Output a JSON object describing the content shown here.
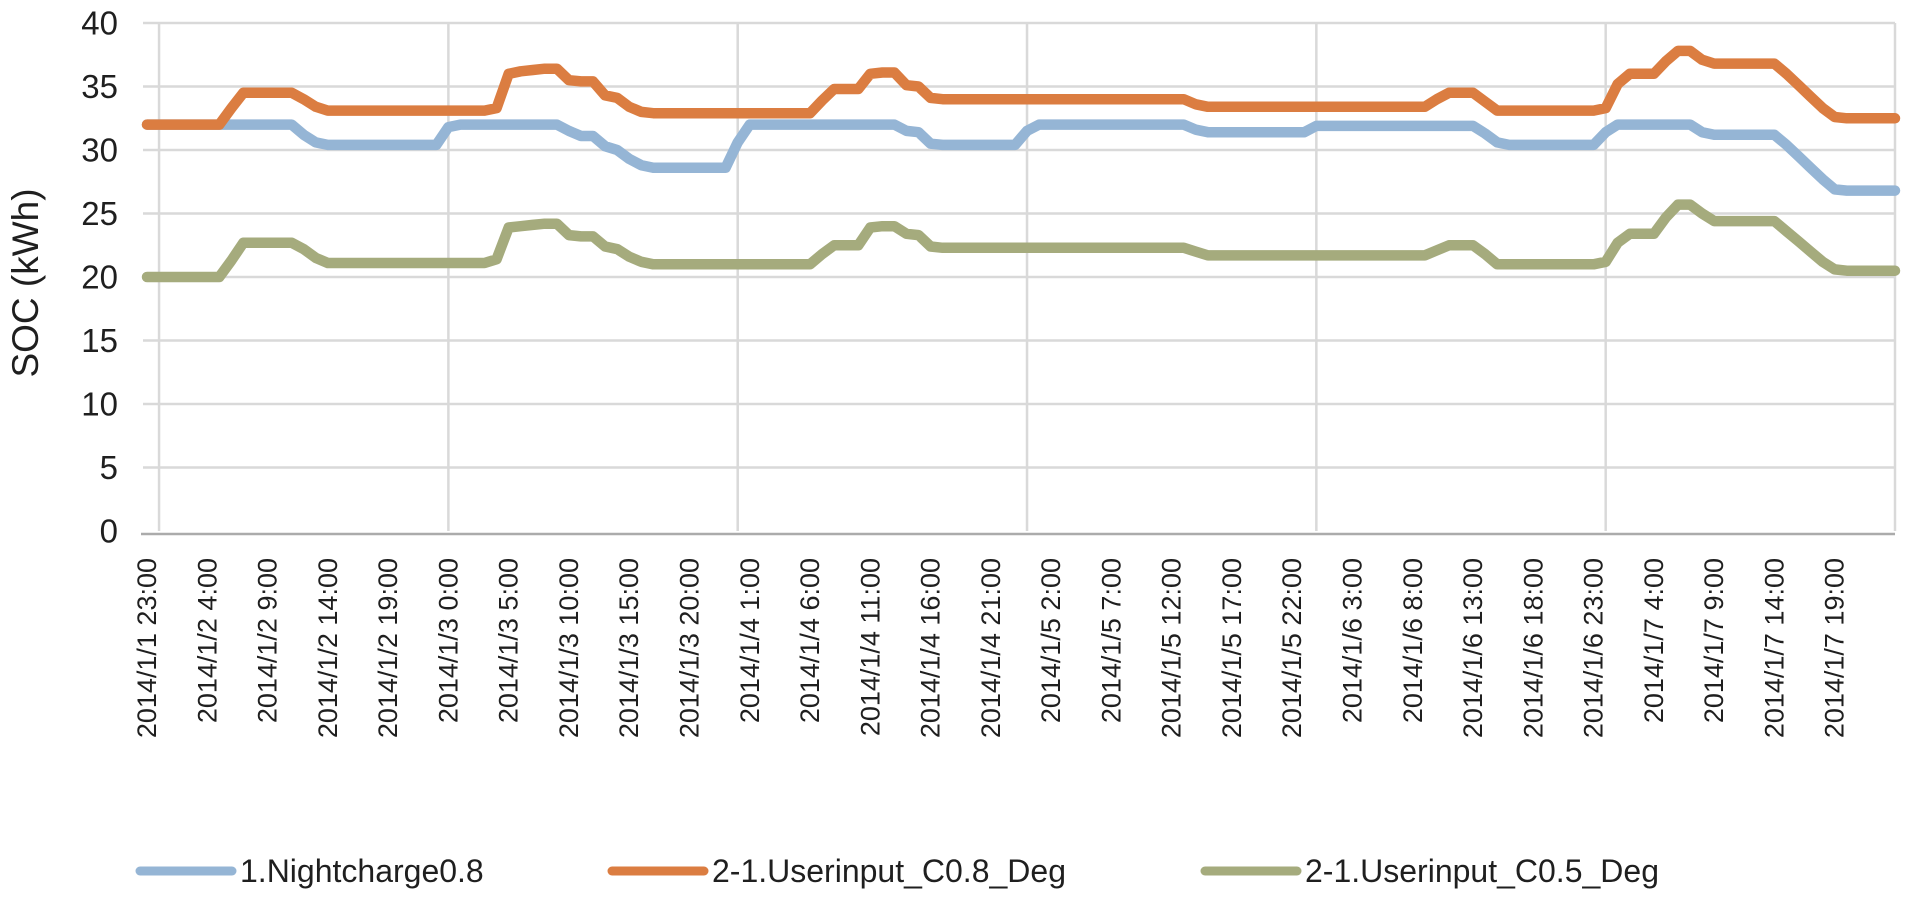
{
  "chart_data": {
    "type": "line",
    "title": "",
    "xlabel": "",
    "ylabel": "SOC (kWh)",
    "ylim": [
      0,
      40
    ],
    "ytick_step": 5,
    "ytick_labels": [
      "0",
      "5",
      "10",
      "15",
      "20",
      "25",
      "30",
      "35",
      "40"
    ],
    "x_start": "2014/1/1 23:00",
    "x_end": "2014/1/8 0:00",
    "x_interval_hours": 1,
    "x_tick_every": 5,
    "x_tick_labels": [
      "2014/1/1 23:00",
      "2014/1/2 4:00",
      "2014/1/2 9:00",
      "2014/1/2 14:00",
      "2014/1/2 19:00",
      "2014/1/3 0:00",
      "2014/1/3 5:00",
      "2014/1/3 10:00",
      "2014/1/3 15:00",
      "2014/1/3 20:00",
      "2014/1/4 1:00",
      "2014/1/4 6:00",
      "2014/1/4 11:00",
      "2014/1/4 16:00",
      "2014/1/4 21:00",
      "2014/1/5 2:00",
      "2014/1/5 7:00",
      "2014/1/5 12:00",
      "2014/1/5 17:00",
      "2014/1/5 22:00",
      "2014/1/6 3:00",
      "2014/1/6 8:00",
      "2014/1/6 13:00",
      "2014/1/6 18:00",
      "2014/1/6 23:00",
      "2014/1/7 4:00",
      "2014/1/7 9:00",
      "2014/1/7 14:00",
      "2014/1/7 19:00"
    ],
    "day_boundary_indices": [
      1,
      25,
      49,
      73,
      97,
      121,
      145
    ],
    "grid": true,
    "legend_position": "bottom",
    "series": [
      {
        "name": "1.Nightcharge0.8",
        "color": "#95B5D5",
        "values": [
          32,
          32,
          32,
          32,
          32,
          32,
          32,
          32,
          32,
          32,
          32,
          32,
          32,
          31.2,
          30.6,
          30.4,
          30.4,
          30.4,
          30.4,
          30.4,
          30.4,
          30.4,
          30.4,
          30.4,
          30.4,
          31.8,
          32,
          32,
          32,
          32,
          32,
          32,
          32,
          32,
          32,
          31.5,
          31.1,
          31.1,
          30.3,
          30,
          29.3,
          28.8,
          28.6,
          28.6,
          28.6,
          28.6,
          28.6,
          28.6,
          28.6,
          30.6,
          32,
          32,
          32,
          32,
          32,
          32,
          32,
          32,
          32,
          32,
          32,
          32,
          32,
          31.5,
          31.4,
          30.5,
          30.4,
          30.4,
          30.4,
          30.4,
          30.4,
          30.4,
          30.4,
          31.5,
          32,
          32,
          32,
          32,
          32,
          32,
          32,
          32,
          32,
          32,
          32,
          32,
          32,
          31.6,
          31.4,
          31.4,
          31.4,
          31.4,
          31.4,
          31.4,
          31.4,
          31.4,
          31.4,
          31.9,
          31.9,
          31.9,
          31.9,
          31.9,
          31.9,
          31.9,
          31.9,
          31.9,
          31.9,
          31.9,
          31.9,
          31.9,
          31.9,
          31.3,
          30.6,
          30.4,
          30.4,
          30.4,
          30.4,
          30.4,
          30.4,
          30.4,
          30.4,
          31.4,
          32,
          32,
          32,
          32,
          32,
          32,
          32,
          31.4,
          31.2,
          31.2,
          31.2,
          31.2,
          31.2,
          31.2,
          30.4,
          29.5,
          28.6,
          27.7,
          26.9,
          26.8,
          26.8,
          26.8,
          26.8,
          26.8
        ]
      },
      {
        "name": "2-1.Userinput_C0.8_Deg",
        "color": "#DB7D41",
        "values": [
          32,
          32,
          32,
          32,
          32,
          32,
          32,
          33.3,
          34.5,
          34.5,
          34.5,
          34.5,
          34.5,
          34,
          33.4,
          33.1,
          33.1,
          33.1,
          33.1,
          33.1,
          33.1,
          33.1,
          33.1,
          33.1,
          33.1,
          33.1,
          33.1,
          33.1,
          33.1,
          33.3,
          36,
          36.2,
          36.3,
          36.4,
          36.4,
          35.5,
          35.4,
          35.4,
          34.3,
          34.1,
          33.4,
          33,
          32.9,
          32.9,
          32.9,
          32.9,
          32.9,
          32.9,
          32.9,
          32.9,
          32.9,
          32.9,
          32.9,
          32.9,
          32.9,
          32.9,
          33.9,
          34.8,
          34.8,
          34.8,
          36,
          36.1,
          36.1,
          35.1,
          35,
          34.1,
          34,
          34,
          34,
          34,
          34,
          34,
          34,
          34,
          34,
          34,
          34,
          34,
          34,
          34,
          34,
          34,
          34,
          34,
          34,
          34,
          34,
          33.6,
          33.4,
          33.4,
          33.4,
          33.4,
          33.4,
          33.4,
          33.4,
          33.4,
          33.4,
          33.4,
          33.4,
          33.4,
          33.4,
          33.4,
          33.4,
          33.4,
          33.4,
          33.4,
          33.4,
          34,
          34.5,
          34.5,
          34.5,
          33.8,
          33.1,
          33.1,
          33.1,
          33.1,
          33.1,
          33.1,
          33.1,
          33.1,
          33.1,
          33.3,
          35.2,
          36,
          36,
          36,
          37,
          37.8,
          37.8,
          37.1,
          36.8,
          36.8,
          36.8,
          36.8,
          36.8,
          36.8,
          36,
          35.1,
          34.2,
          33.3,
          32.6,
          32.5,
          32.5,
          32.5,
          32.5,
          32.5
        ]
      },
      {
        "name": "2-1.Userinput_C0.5_Deg",
        "color": "#A5AB7D",
        "values": [
          20,
          20,
          20,
          20,
          20,
          20,
          20,
          21.3,
          22.7,
          22.7,
          22.7,
          22.7,
          22.7,
          22.2,
          21.5,
          21.1,
          21.1,
          21.1,
          21.1,
          21.1,
          21.1,
          21.1,
          21.1,
          21.1,
          21.1,
          21.1,
          21.1,
          21.1,
          21.1,
          21.4,
          23.9,
          24,
          24.1,
          24.2,
          24.2,
          23.3,
          23.2,
          23.2,
          22.4,
          22.2,
          21.6,
          21.2,
          21,
          21,
          21,
          21,
          21,
          21,
          21,
          21,
          21,
          21,
          21,
          21,
          21,
          21,
          21.8,
          22.5,
          22.5,
          22.5,
          23.9,
          24,
          24,
          23.4,
          23.3,
          22.4,
          22.3,
          22.3,
          22.3,
          22.3,
          22.3,
          22.3,
          22.3,
          22.3,
          22.3,
          22.3,
          22.3,
          22.3,
          22.3,
          22.3,
          22.3,
          22.3,
          22.3,
          22.3,
          22.3,
          22.3,
          22.3,
          22,
          21.7,
          21.7,
          21.7,
          21.7,
          21.7,
          21.7,
          21.7,
          21.7,
          21.7,
          21.7,
          21.7,
          21.7,
          21.7,
          21.7,
          21.7,
          21.7,
          21.7,
          21.7,
          21.7,
          22.1,
          22.5,
          22.5,
          22.5,
          21.8,
          21,
          21,
          21,
          21,
          21,
          21,
          21,
          21,
          21,
          21.2,
          22.7,
          23.4,
          23.4,
          23.4,
          24.7,
          25.7,
          25.7,
          25,
          24.4,
          24.4,
          24.4,
          24.4,
          24.4,
          24.4,
          23.6,
          22.8,
          22,
          21.2,
          20.6,
          20.5,
          20.5,
          20.5,
          20.5,
          20.5
        ]
      }
    ]
  },
  "colors": {
    "gridline": "#D9D9D9",
    "axis": "#ABABAB",
    "text": "#1F1F1F",
    "background": "#FFFFFF"
  }
}
